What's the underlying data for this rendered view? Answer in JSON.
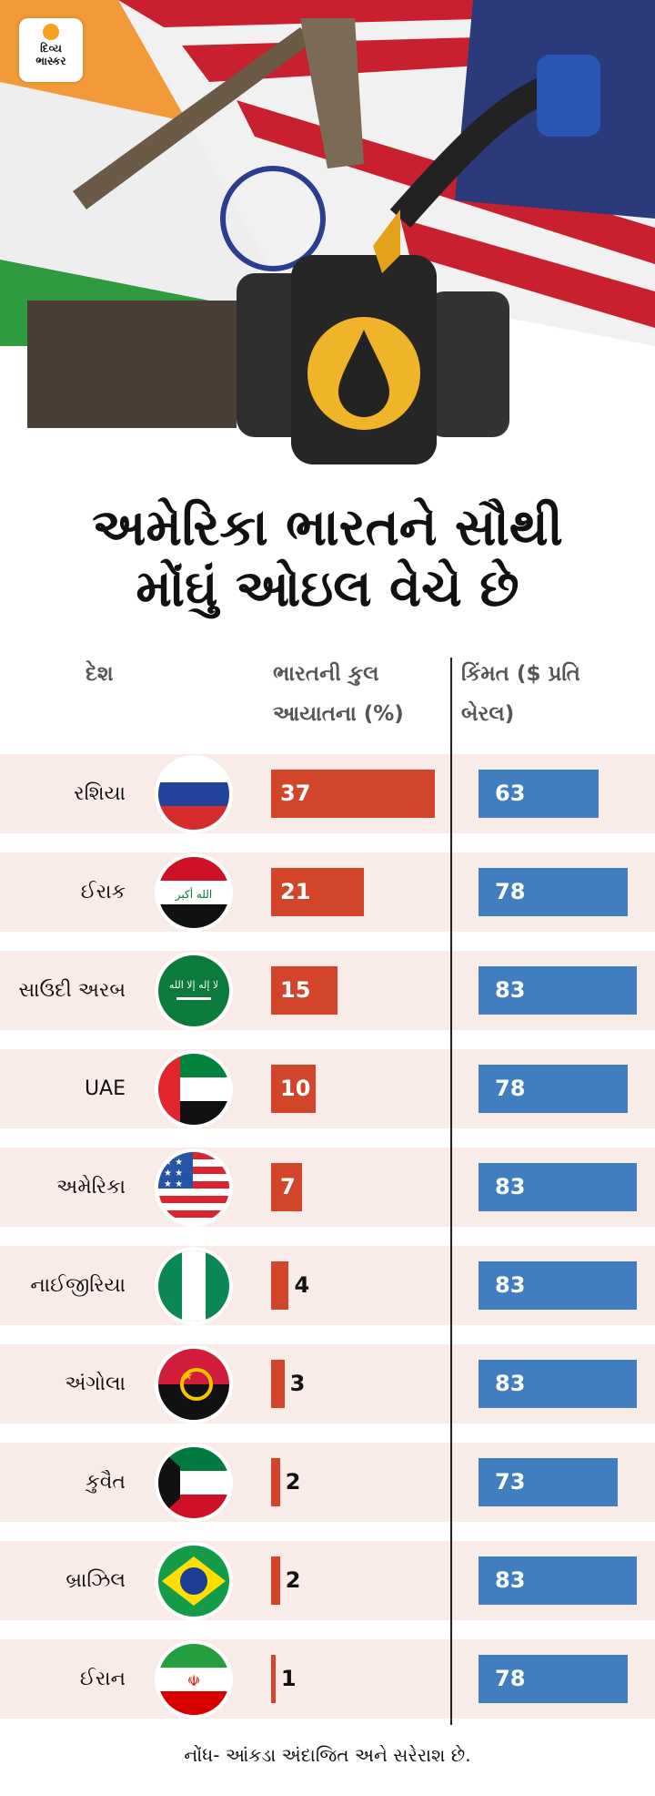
{
  "logo": {
    "line1": "દિવ્ય",
    "line2": "ભાસ્કર"
  },
  "title": {
    "line1": "અમેરિકા ભારતને સૌથી",
    "line2": "મોંઘું ઓઇલ વેચે છે"
  },
  "headers": {
    "country": "દેશ",
    "share_line1": "ભારતની કુલ",
    "share_line2": "આયાતના (%)",
    "price_line1": "કિંમત ($ પ્રતિ",
    "price_line2": "બેરલ)"
  },
  "colors": {
    "share": "#d2452a",
    "price": "#417ec0",
    "row_bg": "#f9ebe8"
  },
  "chart_data": {
    "type": "table",
    "columns": [
      "દેશ",
      "ભારતની કુલ આયાતના (%)",
      "કિંમત ($ પ્રતિ બેરલ)"
    ],
    "rows": [
      {
        "country": "રશિયા",
        "flag": "russia",
        "share": "37",
        "price": "63"
      },
      {
        "country": "ઈરાક",
        "flag": "iraq",
        "share": "21",
        "price": "78"
      },
      {
        "country": "સાઉદી અરબ",
        "flag": "saudi",
        "share": "15",
        "price": "83"
      },
      {
        "country": "UAE",
        "flag": "uae",
        "share": "10",
        "price": "78"
      },
      {
        "country": "અમેરિકા",
        "flag": "usa",
        "share": "7",
        "price": "83"
      },
      {
        "country": "નાઈજીરિયા",
        "flag": "nigeria",
        "share": "4",
        "price": "83"
      },
      {
        "country": "અંગોલા",
        "flag": "angola",
        "share": "3",
        "price": "83"
      },
      {
        "country": "કુવૈત",
        "flag": "kuwait",
        "share": "2",
        "price": "73"
      },
      {
        "country": "બ્રાઝિલ",
        "flag": "brazil",
        "share": "2",
        "price": "83"
      },
      {
        "country": "ઈરાન",
        "flag": "iran",
        "share": "1",
        "price": "78"
      }
    ]
  },
  "note": "નોંધ- આંકડા અંદાજિત અને સરેરાશ છે."
}
